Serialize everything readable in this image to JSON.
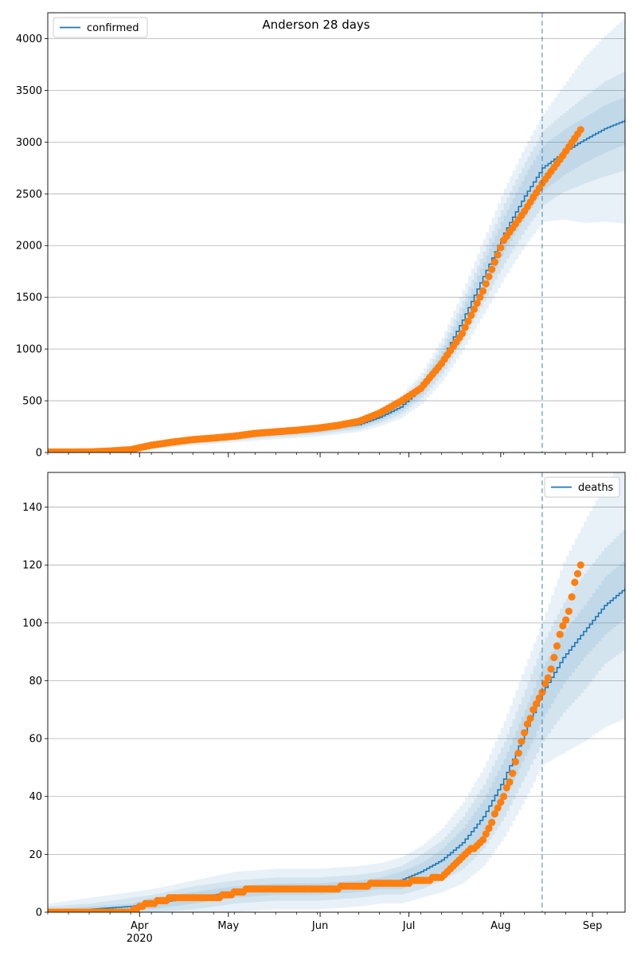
{
  "title": "Anderson 28 days",
  "chart_data": [
    {
      "type": "line",
      "name": "confirmed-panel",
      "legend": {
        "label": "confirmed",
        "placement": "top-left"
      },
      "line_color": "#1f77b4",
      "marker_color": "#ff7f0e",
      "grid": "y",
      "xlim": [
        "2020-03-01",
        "2020-09-12"
      ],
      "ylim": [
        0,
        4250
      ],
      "yticks": [
        0,
        500,
        1000,
        1500,
        2000,
        2500,
        3000,
        3500,
        4000
      ],
      "forecast_start": "2020-08-15",
      "model_x": [
        "2020-03-01",
        "2020-03-15",
        "2020-03-29",
        "2020-04-05",
        "2020-04-19",
        "2020-05-03",
        "2020-05-17",
        "2020-05-31",
        "2020-06-14",
        "2020-06-21",
        "2020-06-28",
        "2020-07-05",
        "2020-07-12",
        "2020-07-19",
        "2020-07-26",
        "2020-08-02",
        "2020-08-09",
        "2020-08-15",
        "2020-08-22",
        "2020-08-29",
        "2020-09-05",
        "2020-09-12"
      ],
      "model_y": [
        5,
        8,
        30,
        75,
        115,
        150,
        185,
        215,
        270,
        340,
        440,
        620,
        900,
        1280,
        1700,
        2120,
        2480,
        2750,
        2900,
        3020,
        3130,
        3210
      ],
      "band_half_widths": [
        [
          3,
          5,
          8
        ],
        [
          4,
          8,
          12
        ],
        [
          10,
          18,
          28
        ],
        [
          15,
          25,
          40
        ],
        [
          15,
          28,
          45
        ],
        [
          18,
          32,
          50
        ],
        [
          20,
          35,
          55
        ],
        [
          22,
          38,
          60
        ],
        [
          25,
          45,
          70
        ],
        [
          30,
          55,
          85
        ],
        [
          40,
          70,
          110
        ],
        [
          55,
          95,
          150
        ],
        [
          80,
          140,
          210
        ],
        [
          110,
          190,
          290
        ],
        [
          140,
          240,
          360
        ],
        [
          170,
          290,
          430
        ],
        [
          200,
          330,
          480
        ],
        [
          220,
          360,
          520
        ],
        [
          220,
          380,
          650
        ],
        [
          220,
          420,
          800
        ],
        [
          230,
          460,
          900
        ],
        [
          230,
          480,
          1000
        ]
      ],
      "observed_x": [
        "2020-03-01",
        "2020-03-15",
        "2020-03-22",
        "2020-03-29",
        "2020-04-05",
        "2020-04-12",
        "2020-04-19",
        "2020-04-26",
        "2020-05-03",
        "2020-05-10",
        "2020-05-17",
        "2020-05-24",
        "2020-05-31",
        "2020-06-07",
        "2020-06-14",
        "2020-06-21",
        "2020-06-28",
        "2020-07-05",
        "2020-07-12",
        "2020-07-19",
        "2020-07-26",
        "2020-08-02",
        "2020-08-09",
        "2020-08-15",
        "2020-08-22",
        "2020-08-28"
      ],
      "observed_y": [
        5,
        6,
        15,
        28,
        70,
        100,
        125,
        140,
        158,
        185,
        200,
        215,
        235,
        262,
        300,
        380,
        490,
        620,
        860,
        1150,
        1560,
        2050,
        2330,
        2600,
        2870,
        3120
      ]
    },
    {
      "type": "line",
      "name": "deaths-panel",
      "legend": {
        "label": "deaths",
        "placement": "top-right"
      },
      "line_color": "#1f77b4",
      "marker_color": "#ff7f0e",
      "grid": "y",
      "xlim": [
        "2020-03-01",
        "2020-09-12"
      ],
      "ylim": [
        0,
        152
      ],
      "yticks": [
        0,
        20,
        40,
        60,
        80,
        100,
        120,
        140
      ],
      "xticks": [
        {
          "date": "2020-04-01",
          "label": "Apr",
          "sublabel": "2020"
        },
        {
          "date": "2020-05-01",
          "label": "May",
          "sublabel": ""
        },
        {
          "date": "2020-06-01",
          "label": "Jun",
          "sublabel": ""
        },
        {
          "date": "2020-07-01",
          "label": "Jul",
          "sublabel": ""
        },
        {
          "date": "2020-08-01",
          "label": "Aug",
          "sublabel": ""
        },
        {
          "date": "2020-09-01",
          "label": "Sep",
          "sublabel": ""
        }
      ],
      "forecast_start": "2020-08-15",
      "model_x": [
        "2020-03-01",
        "2020-03-15",
        "2020-03-29",
        "2020-04-05",
        "2020-04-19",
        "2020-05-03",
        "2020-05-17",
        "2020-05-31",
        "2020-06-14",
        "2020-06-21",
        "2020-06-28",
        "2020-07-05",
        "2020-07-12",
        "2020-07-19",
        "2020-07-26",
        "2020-08-02",
        "2020-08-09",
        "2020-08-15",
        "2020-08-22",
        "2020-08-29",
        "2020-09-05",
        "2020-09-12"
      ],
      "model_y": [
        0,
        1,
        2,
        3,
        5,
        7,
        8,
        8,
        9,
        10,
        11,
        14,
        18,
        24,
        33,
        46,
        62,
        76,
        88,
        97,
        106,
        112
      ],
      "band_half_widths": [
        [
          1,
          2,
          3
        ],
        [
          1,
          2,
          4
        ],
        [
          1,
          3,
          5
        ],
        [
          2,
          3,
          5
        ],
        [
          2,
          4,
          6
        ],
        [
          2,
          4,
          7
        ],
        [
          2,
          4,
          7
        ],
        [
          2,
          4,
          7
        ],
        [
          2,
          4,
          7
        ],
        [
          2,
          4,
          7
        ],
        [
          3,
          5,
          8
        ],
        [
          3,
          6,
          9
        ],
        [
          4,
          7,
          11
        ],
        [
          5,
          9,
          14
        ],
        [
          6,
          11,
          17
        ],
        [
          7,
          13,
          20
        ],
        [
          8,
          15,
          23
        ],
        [
          9,
          17,
          25
        ],
        [
          9,
          19,
          33
        ],
        [
          9,
          20,
          38
        ],
        [
          10,
          20,
          42
        ],
        [
          10,
          21,
          45
        ]
      ],
      "observed_x": [
        "2020-03-01",
        "2020-03-15",
        "2020-03-29",
        "2020-04-01",
        "2020-04-05",
        "2020-04-12",
        "2020-04-19",
        "2020-04-26",
        "2020-05-01",
        "2020-05-08",
        "2020-05-22",
        "2020-06-01",
        "2020-06-14",
        "2020-06-21",
        "2020-06-28",
        "2020-07-05",
        "2020-07-12",
        "2020-07-19",
        "2020-07-26",
        "2020-08-02",
        "2020-08-05",
        "2020-08-09",
        "2020-08-12",
        "2020-08-15",
        "2020-08-18",
        "2020-08-21",
        "2020-08-24",
        "2020-08-26",
        "2020-08-28"
      ],
      "observed_y": [
        0,
        0,
        0,
        2,
        3,
        5,
        5,
        5,
        6,
        8,
        8,
        8,
        9,
        10,
        10,
        11,
        12,
        19,
        25,
        40,
        48,
        62,
        70,
        76,
        84,
        96,
        104,
        114,
        120
      ]
    }
  ]
}
